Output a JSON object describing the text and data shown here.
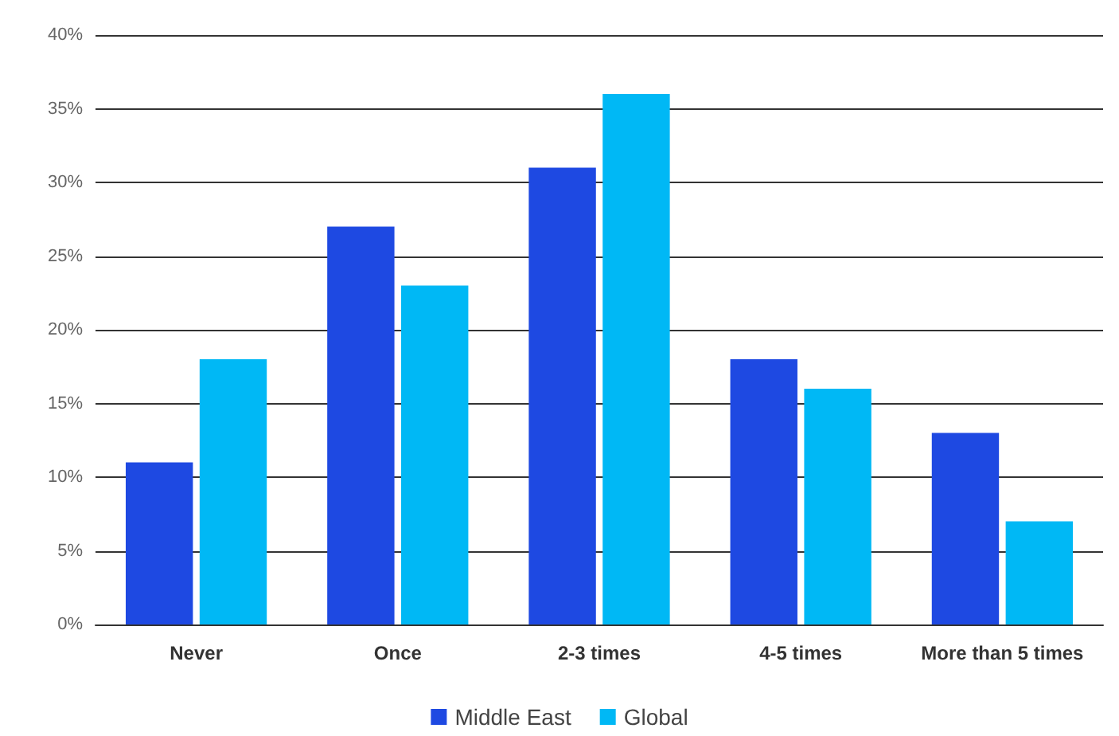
{
  "chart_data": {
    "type": "bar",
    "categories": [
      "Never",
      "Once",
      "2-3 times",
      "4-5 times",
      "More than 5 times"
    ],
    "series": [
      {
        "name": "Middle East",
        "color": "#1e49e2",
        "values": [
          11,
          27,
          31,
          18,
          13
        ]
      },
      {
        "name": "Global",
        "color": "#00b8f5",
        "values": [
          18,
          23,
          36,
          16,
          7
        ]
      }
    ],
    "ylim": [
      0,
      40
    ],
    "yticks": [
      {
        "value": 0,
        "label": "0%"
      },
      {
        "value": 5,
        "label": "5%"
      },
      {
        "value": 10,
        "label": "10%"
      },
      {
        "value": 15,
        "label": "15%"
      },
      {
        "value": 20,
        "label": "20%"
      },
      {
        "value": 25,
        "label": "25%"
      },
      {
        "value": 30,
        "label": "30%"
      },
      {
        "value": 35,
        "label": "35%"
      },
      {
        "value": 40,
        "label": "40%"
      }
    ],
    "grid": "y",
    "legend": "bottom"
  }
}
